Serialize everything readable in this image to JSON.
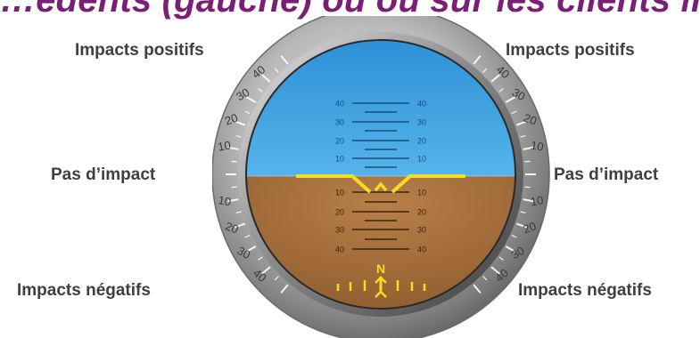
{
  "header": {
    "title": "…édents (gauche) ou ou sur les clients in"
  },
  "labels": {
    "left_top": "Impacts positifs",
    "right_top": "Impacts positifs",
    "left_mid": "Pas d’impact",
    "right_mid": "Pas d’impact",
    "left_bottom": "Impacts négatifs",
    "right_bottom": "Impacts négatifs"
  },
  "bezel": {
    "upper_marks": [
      "40",
      "30",
      "20",
      "10"
    ],
    "lower_marks": [
      "10",
      "20",
      "30",
      "40"
    ]
  },
  "pitch_ladder": {
    "sky_marks": [
      "40",
      "30",
      "20",
      "10"
    ],
    "ground_marks": [
      "10",
      "20",
      "30",
      "40"
    ]
  },
  "heading": {
    "letter": "N"
  },
  "colors": {
    "title": "#7a1f73",
    "sky": "#3aa2e0",
    "ground": "#a8733f",
    "indicator": "#f3de1f",
    "bezel": "#9a9a9a",
    "label_text": "#3f3f3f"
  }
}
